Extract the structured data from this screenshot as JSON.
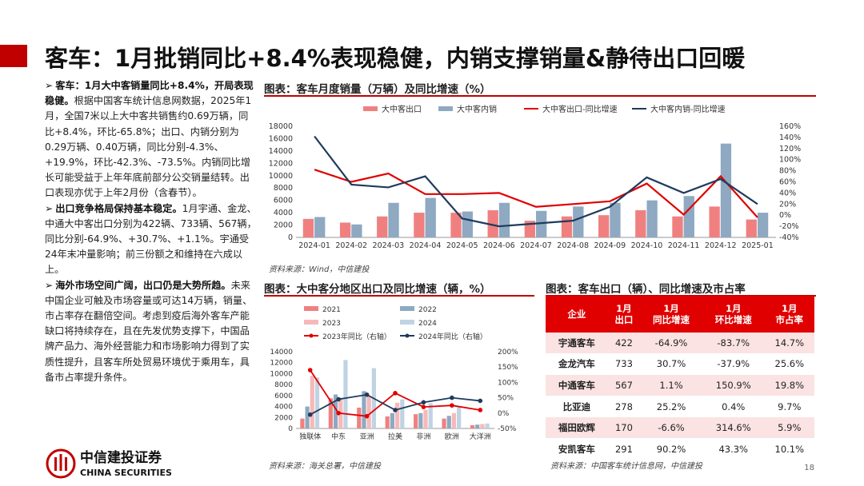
{
  "title": "客车：1月批销同比+8.4%表现稳健，内销支撑销量&静待出口回暖",
  "bullets": [
    {
      "marker": "➢",
      "bold": "客车：1月大中客销量同比+8.4%，开局表现稳健。",
      "text": "根据中国客车统计信息网数据，2025年1月，全国7米以上大中客共销售约0.69万辆，同比+8.4%，环比-65.8%；出口、内销分别为0.29万辆、0.40万辆，同比分别-4.3%、+19.9%，环比-42.3%、-73.5%。内销同比增长可能受益于上年年底前部分公交销量结转。出口表现亦优于上年2月份（含春节）。"
    },
    {
      "marker": "➢",
      "bold": "出口竞争格局保持基本稳定。",
      "text": "1月宇通、金龙、中通大中客出口分别为422辆、733辆、567辆，同比分别-64.9%、+30.7%、+1.1%。宇通受24年末冲量影响；前三份额之和维持在六成以上。"
    },
    {
      "marker": "➢",
      "bold": "海外市场空间广阔，出口仍是大势所趋。",
      "text": "未来中国企业可触及市场容量或可达14万辆，销量、市占率存在翻倍空间。考虑到疫后海外客车产能缺口将持续存在，且在先发优势支撑下，中国品牌产品力、海外经营能力和市场影响力得到了实质性提升，且客车所处贸易环境优于乘用车，具备市占率提升条件。"
    }
  ],
  "chart1_title": "图表：客车月度销量（万辆）及同比增速（%）",
  "chart1_source": "资料来源：Wind，中信建投",
  "chart2_title": "图表：大中客分地区出口及同比增速（辆，%）",
  "chart2_source": "资料来源：海关总署，中信建投",
  "table_title": "图表：客车出口（辆）、同比增速及市占率",
  "table_source": "资料来源：中国客车统计信息网，中信建投",
  "page_number": "18",
  "logo": {
    "cn": "中信建投证券",
    "en": "CHINA SECURITIES"
  },
  "colors": {
    "accent": "#c00000",
    "bar_pink": "#f08080",
    "bar_blue": "#8ea9c1",
    "line_red": "#e00000",
    "line_navy": "#1f3b5c"
  },
  "chart_data": [
    {
      "type": "bar+line",
      "title": "客车月度销量（万辆）及同比增速（%）",
      "categories": [
        "2024-01",
        "2024-02",
        "2024-03",
        "2024-04",
        "2024-05",
        "2024-06",
        "2024-07",
        "2024-08",
        "2024-09",
        "2024-10",
        "2024-11",
        "2024-12",
        "2025-01"
      ],
      "series": [
        {
          "name": "大中客出口",
          "kind": "bar",
          "axis": "left",
          "values": [
            3000,
            2400,
            3400,
            4000,
            4000,
            4400,
            2700,
            3400,
            3600,
            4400,
            3400,
            5000,
            2900
          ]
        },
        {
          "name": "大中客内销",
          "kind": "bar",
          "axis": "left",
          "values": [
            3300,
            2100,
            5600,
            6400,
            4200,
            5600,
            4300,
            5000,
            5600,
            6000,
            6700,
            15200,
            4000
          ]
        },
        {
          "name": "大中客出口-同比增速",
          "kind": "line",
          "axis": "right",
          "values": [
            82,
            60,
            75,
            38,
            38,
            40,
            15,
            20,
            25,
            57,
            1,
            70,
            -4
          ]
        },
        {
          "name": "大中客内销-同比增速",
          "kind": "line",
          "axis": "right",
          "values": [
            142,
            55,
            50,
            70,
            -6,
            -20,
            -15,
            -10,
            15,
            68,
            40,
            65,
            20
          ]
        }
      ],
      "ylim_left": [
        0,
        18000
      ],
      "ylim_right": [
        -40,
        160
      ],
      "yticks_left": [
        "0",
        "2000",
        "4000",
        "6000",
        "8000",
        "10000",
        "12000",
        "14000",
        "16000",
        "18000"
      ],
      "yticks_right": [
        "-40%",
        "-20%",
        "0%",
        "20%",
        "40%",
        "60%",
        "80%",
        "100%",
        "120%",
        "140%",
        "160%"
      ]
    },
    {
      "type": "bar+line",
      "title": "大中客分地区出口及同比增速（辆，%）",
      "categories": [
        "独联体",
        "中东",
        "亚洲",
        "拉美",
        "非洲",
        "欧洲",
        "大洋洲"
      ],
      "series": [
        {
          "name": "2021",
          "kind": "bar",
          "axis": "left",
          "values": [
            1800,
            5500,
            3800,
            2200,
            2600,
            1800,
            600
          ]
        },
        {
          "name": "2022",
          "kind": "bar",
          "axis": "left",
          "values": [
            4000,
            6200,
            6800,
            2800,
            2800,
            2300,
            700
          ]
        },
        {
          "name": "2023",
          "kind": "bar",
          "axis": "left",
          "values": [
            9600,
            5600,
            5900,
            4700,
            3400,
            2800,
            800
          ]
        },
        {
          "name": "2024",
          "kind": "bar",
          "axis": "left",
          "values": [
            9300,
            12500,
            11000,
            5300,
            4600,
            4000,
            900
          ]
        },
        {
          "name": "2023年同比（右轴）",
          "kind": "line",
          "axis": "right",
          "values": [
            140,
            0,
            -10,
            65,
            20,
            25,
            10
          ]
        },
        {
          "name": "2024年同比（右轴）",
          "kind": "line",
          "axis": "right",
          "values": [
            -5,
            45,
            60,
            10,
            35,
            50,
            40
          ]
        }
      ],
      "ylim_left": [
        0,
        14000
      ],
      "ylim_right": [
        -50,
        200
      ],
      "yticks_left": [
        "0",
        "2000",
        "4000",
        "6000",
        "8000",
        "10000",
        "12000",
        "14000"
      ],
      "yticks_right": [
        "-50%",
        "0%",
        "50%",
        "100%",
        "150%",
        "200%"
      ]
    },
    {
      "type": "table",
      "title": "客车出口（辆）、同比增速及市占率",
      "columns": [
        "企业",
        "1月\n出口",
        "1月\n同比增速",
        "1月\n环比增速",
        "1月\n市占率"
      ],
      "rows": [
        [
          "宇通客车",
          "422",
          "-64.9%",
          "-83.7%",
          "14.7%"
        ],
        [
          "金龙汽车",
          "733",
          "30.7%",
          "-37.9%",
          "25.6%"
        ],
        [
          "中通客车",
          "567",
          "1.1%",
          "150.9%",
          "19.8%"
        ],
        [
          "比亚迪",
          "278",
          "25.2%",
          "0.4%",
          "9.7%"
        ],
        [
          "福田欧辉",
          "170",
          "-6.6%",
          "314.6%",
          "5.9%"
        ],
        [
          "安凯客车",
          "291",
          "90.2%",
          "43.3%",
          "10.1%"
        ]
      ]
    }
  ]
}
